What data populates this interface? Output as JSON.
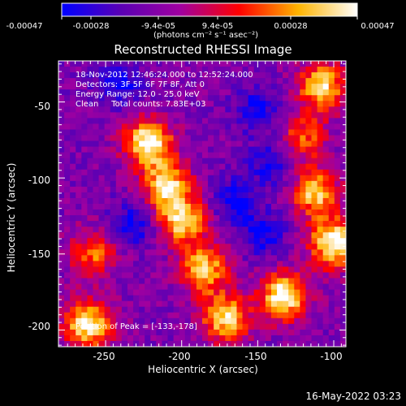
{
  "colorbar": {
    "tick_labels": [
      "-0.00047",
      "-0.00028",
      "-9.4e-05",
      "9.4e-05",
      "0.00028",
      "0.00047"
    ],
    "units": "(photons cm⁻² s⁻¹ asec⁻²)",
    "colors": [
      "#0000ff",
      "#5a00b4",
      "#a000a0",
      "#ff0000",
      "#ffb400",
      "#ffffff"
    ]
  },
  "title": "Reconstructed RHESSI Image",
  "info": {
    "time": "18-Nov-2012 12:46:24.000 to 12:52:24.000",
    "detectors": "Detectors: 3F 5F 6F 7F 8F, Att 0",
    "energy": "Energy Range: 12.0 - 25.0 keV",
    "clean": "Clean     Total counts: 7.83E+03"
  },
  "peak_label": "Position of Peak = [-133,-178]",
  "chart_data": {
    "type": "heatmap",
    "title": "Reconstructed RHESSI Image",
    "xlabel": "Heliocentric X (arcsec)",
    "ylabel": "Heliocentric Y (arcsec)",
    "xlim": [
      -281,
      -92
    ],
    "ylim": [
      -211,
      -23
    ],
    "x_ticks": [
      -250,
      -200,
      -150,
      -100
    ],
    "y_ticks": [
      -50,
      -100,
      -150,
      -200
    ],
    "x_tick_labels": [
      "-250",
      "-200",
      "-150",
      "-100"
    ],
    "y_tick_labels": [
      "-50",
      "-100",
      "-150",
      "-200"
    ],
    "value_range": [
      -0.00047,
      0.00047
    ],
    "peak_position": [
      -133,
      -178
    ],
    "bright_regions": [
      {
        "x": -222,
        "y": -77,
        "level": 1.0
      },
      {
        "x": -210,
        "y": -105,
        "level": 0.85
      },
      {
        "x": -200,
        "y": -128,
        "level": 0.85
      },
      {
        "x": -185,
        "y": -160,
        "level": 0.8
      },
      {
        "x": -262,
        "y": -196,
        "level": 0.95
      },
      {
        "x": -171,
        "y": -192,
        "level": 0.85
      },
      {
        "x": -133,
        "y": -178,
        "level": 1.0
      },
      {
        "x": -100,
        "y": -143,
        "level": 1.0
      },
      {
        "x": -112,
        "y": -110,
        "level": 0.8
      },
      {
        "x": -108,
        "y": -40,
        "level": 0.85
      },
      {
        "x": -258,
        "y": -150,
        "level": 0.55
      },
      {
        "x": -120,
        "y": -74,
        "level": 0.55
      }
    ],
    "dark_regions": [
      {
        "x": -165,
        "y": -114
      },
      {
        "x": -146,
        "y": -137
      },
      {
        "x": -150,
        "y": -55
      },
      {
        "x": -242,
        "y": -38
      },
      {
        "x": -232,
        "y": -130
      },
      {
        "x": -140,
        "y": -90
      }
    ]
  },
  "timestamp": "16-May-2022 03:23"
}
